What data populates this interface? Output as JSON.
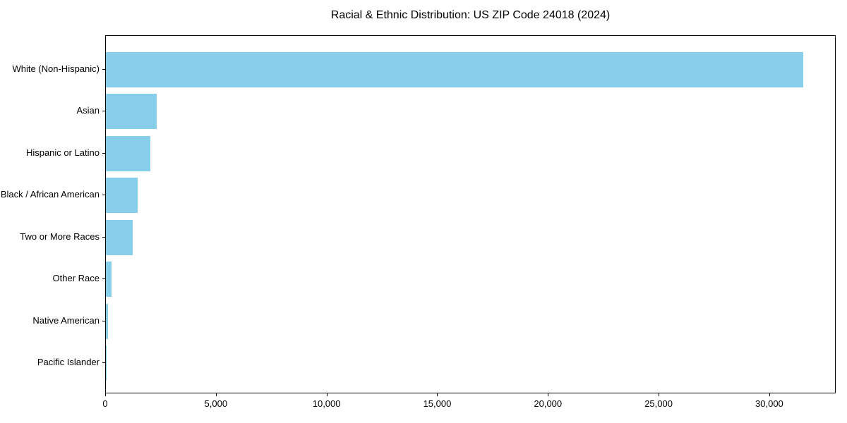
{
  "chart_data": {
    "type": "bar",
    "orientation": "horizontal",
    "title": "Racial & Ethnic Distribution: US ZIP Code 24018 (2024)",
    "categories": [
      "White (Non-Hispanic)",
      "Asian",
      "Hispanic or Latino",
      "Black / African American",
      "Two or More Races",
      "Other Race",
      "Native American",
      "Pacific Islander"
    ],
    "values": [
      31500,
      2300,
      2000,
      1450,
      1200,
      250,
      90,
      15
    ],
    "xlabel": "",
    "ylabel": "",
    "xlim": [
      0,
      33000
    ],
    "x_ticks": [
      0,
      5000,
      10000,
      15000,
      20000,
      25000,
      30000
    ],
    "x_tick_labels": [
      "0",
      "5,000",
      "10,000",
      "15,000",
      "20,000",
      "25,000",
      "30,000"
    ],
    "bar_color": "#87CEEB",
    "axis_color": "#000000",
    "text_color": "#000000",
    "background_color": "#ffffff",
    "grid": false,
    "legend": null
  }
}
